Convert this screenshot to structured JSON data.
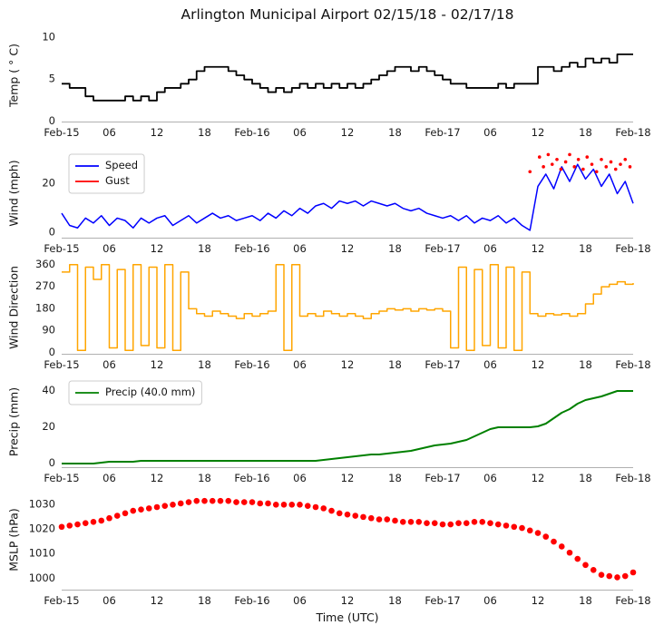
{
  "figure": {
    "title": "Arlington Municipal Airport 02/15/18 - 02/17/18",
    "xlabel": "Time (UTC)",
    "background": "#ffffff"
  },
  "x_axis": {
    "range": [
      0,
      72
    ],
    "ticks": [
      0,
      6,
      12,
      18,
      24,
      30,
      36,
      42,
      48,
      54,
      60,
      66,
      72
    ],
    "tick_labels": [
      "Feb-15",
      "06",
      "12",
      "18",
      "Feb-16",
      "06",
      "12",
      "18",
      "Feb-17",
      "06",
      "12",
      "18",
      "Feb-18"
    ]
  },
  "chart_data": [
    {
      "type": "line",
      "ylabel": "Temp ( ° C)",
      "ylim": [
        0,
        10.9
      ],
      "yticks": [
        0,
        5,
        10
      ],
      "legend": false,
      "series": [
        {
          "name": "Temp",
          "color": "#000000",
          "mode": "step",
          "width": 1.8,
          "x_start": 0,
          "x_step": 1,
          "values": [
            4.5,
            4,
            4,
            3,
            2.5,
            2.5,
            2.5,
            2.5,
            3,
            2.5,
            3,
            2.5,
            3.5,
            4,
            4,
            4.5,
            5,
            6,
            6.5,
            6.5,
            6.5,
            6,
            5.5,
            5,
            4.5,
            4,
            3.5,
            4,
            3.5,
            4,
            4.5,
            4,
            4.5,
            4,
            4.5,
            4,
            4.5,
            4,
            4.5,
            5,
            5.5,
            6,
            6.5,
            6.5,
            6,
            6.5,
            6,
            5.5,
            5,
            4.5,
            4.5,
            4,
            4,
            4,
            4,
            4.5,
            4,
            4.5,
            4.5,
            4.5,
            6.5,
            6.5,
            6,
            6.5,
            7,
            6.5,
            7.5,
            7,
            7.5,
            7,
            8,
            8,
            8
          ]
        }
      ]
    },
    {
      "type": "line",
      "ylabel": "Wind (mph)",
      "ylim": [
        -2,
        34
      ],
      "yticks": [
        0,
        20
      ],
      "legend": true,
      "series": [
        {
          "name": "Speed",
          "color": "#0000ff",
          "mode": "line",
          "width": 1.5,
          "x_start": 0,
          "x_step": 1,
          "values": [
            8,
            3,
            2,
            6,
            4,
            7,
            3,
            6,
            5,
            2,
            6,
            4,
            6,
            7,
            3,
            5,
            7,
            4,
            6,
            8,
            6,
            7,
            5,
            6,
            7,
            5,
            8,
            6,
            9,
            7,
            10,
            8,
            11,
            12,
            10,
            13,
            12,
            13,
            11,
            13,
            12,
            11,
            12,
            10,
            9,
            10,
            8,
            7,
            6,
            7,
            5,
            7,
            4,
            6,
            5,
            7,
            4,
            6,
            3,
            1,
            19,
            24,
            18,
            27,
            21,
            28,
            22,
            26,
            19,
            24,
            16,
            21,
            12
          ]
        },
        {
          "name": "Gust",
          "color": "#ff0000",
          "mode": "scatter",
          "size": 1.8,
          "x": [
            59,
            60.2,
            60.7,
            61.3,
            61.8,
            62.4,
            62.9,
            63.5,
            64,
            64.6,
            65.1,
            65.7,
            66.2,
            66.8,
            67.4,
            68,
            68.6,
            69.2,
            69.8,
            70.4,
            71,
            71.6
          ],
          "values": [
            25,
            31,
            27,
            32,
            28,
            30,
            26,
            29,
            32,
            27,
            30,
            26,
            31,
            28,
            25,
            30,
            27,
            29,
            26,
            28,
            30,
            27
          ]
        }
      ]
    },
    {
      "type": "line",
      "ylabel": "Wind Direction",
      "ylim": [
        -4,
        374
      ],
      "yticks": [
        0,
        90,
        180,
        270,
        360
      ],
      "legend": false,
      "series": [
        {
          "name": "Direction",
          "color": "#ffa500",
          "mode": "step",
          "width": 1.5,
          "x_start": 0,
          "x_step": 1,
          "values": [
            330,
            360,
            10,
            350,
            300,
            360,
            20,
            340,
            10,
            360,
            30,
            350,
            20,
            360,
            10,
            330,
            180,
            160,
            150,
            170,
            160,
            150,
            140,
            160,
            150,
            160,
            170,
            360,
            10,
            360,
            150,
            160,
            150,
            170,
            160,
            150,
            160,
            150,
            140,
            160,
            170,
            180,
            175,
            180,
            170,
            180,
            175,
            180,
            170,
            20,
            350,
            10,
            340,
            30,
            360,
            20,
            350,
            10,
            330,
            160,
            150,
            160,
            155,
            160,
            150,
            160,
            200,
            240,
            270,
            280,
            290,
            280,
            285
          ]
        }
      ]
    },
    {
      "type": "line",
      "ylabel": "Precip (mm)",
      "ylim": [
        -2,
        48
      ],
      "yticks": [
        0,
        20,
        40
      ],
      "legend": true,
      "series": [
        {
          "name": "Precip (40.0 mm)",
          "color": "#008000",
          "mode": "line",
          "width": 2,
          "x_start": 0,
          "x_step": 1,
          "values": [
            0,
            0,
            0,
            0,
            0,
            0.5,
            1,
            1,
            1,
            1,
            1.5,
            1.5,
            1.5,
            1.5,
            1.5,
            1.5,
            1.5,
            1.5,
            1.5,
            1.5,
            1.5,
            1.5,
            1.5,
            1.5,
            1.5,
            1.5,
            1.5,
            1.5,
            1.5,
            1.5,
            1.5,
            1.5,
            1.5,
            2,
            2.5,
            3,
            3.5,
            4,
            4.5,
            5,
            5,
            5.5,
            6,
            6.5,
            7,
            8,
            9,
            10,
            10.5,
            11,
            12,
            13,
            15,
            17,
            19,
            20,
            20,
            20,
            20,
            20,
            20.5,
            22,
            25,
            28,
            30,
            33,
            35,
            36,
            37,
            38.5,
            40,
            40,
            40
          ]
        }
      ]
    },
    {
      "type": "scatter",
      "ylabel": "MSLP (hPa)",
      "ylim": [
        995.5,
        1036
      ],
      "yticks": [
        1000,
        1010,
        1020,
        1030
      ],
      "legend": false,
      "series": [
        {
          "name": "MSLP",
          "color": "#ff0000",
          "mode": "scatter",
          "size": 3.3,
          "x_start": 0,
          "x_step": 1,
          "values": [
            1021,
            1021.5,
            1022,
            1022.5,
            1023,
            1023.5,
            1024.5,
            1025.5,
            1026.5,
            1027.5,
            1028,
            1028.5,
            1029,
            1029.5,
            1030,
            1030.5,
            1031,
            1031.5,
            1031.5,
            1031.5,
            1031.5,
            1031.5,
            1031,
            1031,
            1031,
            1030.5,
            1030.5,
            1030,
            1030,
            1030,
            1030,
            1029.5,
            1029,
            1028.5,
            1027.5,
            1026.5,
            1026,
            1025.5,
            1025,
            1024.5,
            1024,
            1024,
            1023.5,
            1023,
            1023,
            1023,
            1022.5,
            1022.5,
            1022,
            1022,
            1022.5,
            1022.5,
            1023,
            1023,
            1022.5,
            1022,
            1021.5,
            1021,
            1020.5,
            1019.5,
            1018.5,
            1017,
            1015,
            1013,
            1010.5,
            1008,
            1005.5,
            1003.5,
            1001.5,
            1001,
            1000.5,
            1001,
            1002.5
          ]
        }
      ]
    }
  ]
}
